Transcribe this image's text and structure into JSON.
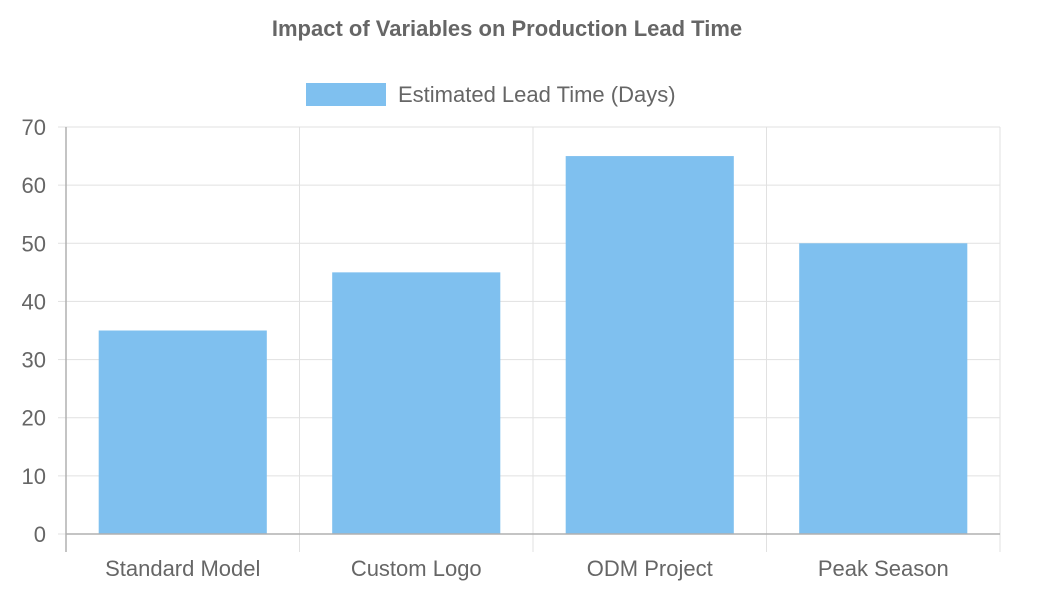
{
  "chart_data": {
    "type": "bar",
    "title": "Impact of Variables on Production Lead Time",
    "categories": [
      "Standard Model",
      "Custom Logo",
      "ODM Project",
      "Peak Season"
    ],
    "series": [
      {
        "name": "Estimated Lead Time (Days)",
        "values": [
          35,
          45,
          65,
          50
        ],
        "color": "#7fc0ef"
      }
    ],
    "xlabel": "",
    "ylabel": "",
    "ylim": [
      0,
      70
    ],
    "ytick_step": 10,
    "grid": true,
    "legend_position": "top-center"
  }
}
